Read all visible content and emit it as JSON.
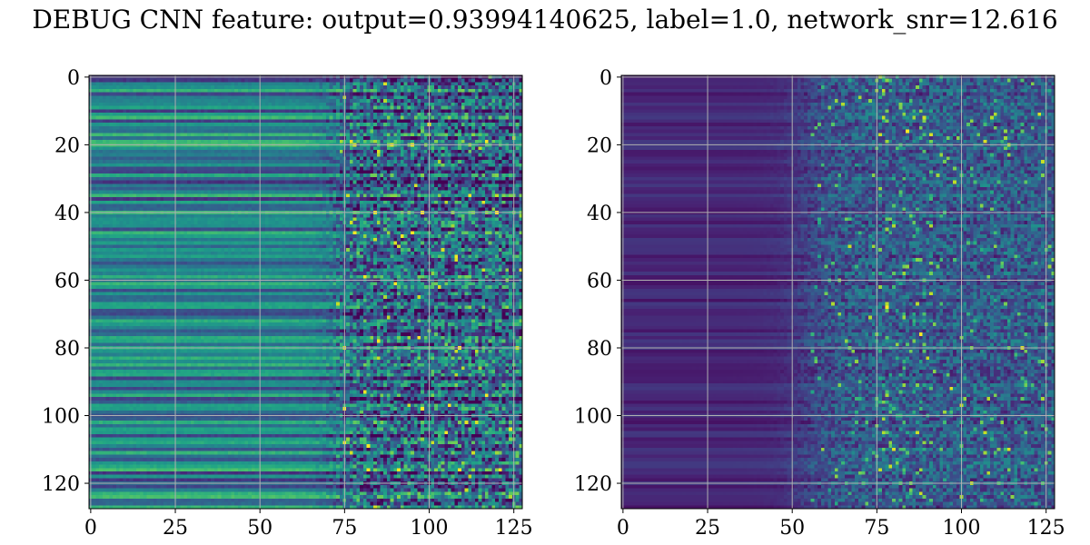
{
  "figure": {
    "title": "DEBUG CNN feature: output=0.93994140625, label=1.0, network_snr=12.616"
  },
  "chart_data": [
    {
      "type": "heatmap",
      "title": "",
      "xlabel": "",
      "ylabel": "",
      "shape": [
        128,
        128
      ],
      "xlim": [
        -0.5,
        127.5
      ],
      "ylim": [
        127.5,
        -0.5
      ],
      "xticks": [
        0,
        25,
        50,
        75,
        100,
        125
      ],
      "yticks": [
        0,
        20,
        40,
        60,
        80,
        100,
        120
      ],
      "grid": true,
      "colormap": "viridis",
      "description_of_values": "row-banded intensity; smooth on left (cols 0-70), noisy speckle on right (cols 75-127)",
      "colors": {
        "low": "#440154",
        "mid": "#21918c",
        "high": "#fde725"
      }
    },
    {
      "type": "heatmap",
      "title": "",
      "xlabel": "",
      "ylabel": "",
      "shape": [
        128,
        128
      ],
      "xlim": [
        -0.5,
        127.5
      ],
      "ylim": [
        127.5,
        -0.5
      ],
      "xticks": [
        0,
        25,
        50,
        75,
        100,
        125
      ],
      "yticks": [
        0,
        20,
        40,
        60,
        80,
        100,
        120
      ],
      "grid": true,
      "colormap": "viridis",
      "description_of_values": "mostly dark purple; sparse bright speckle in cols 50-127, strongest near cols 75-90",
      "colors": {
        "low": "#440154",
        "mid": "#21918c",
        "high": "#fde725"
      }
    }
  ]
}
